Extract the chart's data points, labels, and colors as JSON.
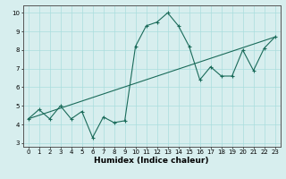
{
  "title": "",
  "xlabel": "Humidex (Indice chaleur)",
  "ylabel": "",
  "bg_color": "#d7eeee",
  "line_color": "#1a6b5a",
  "xlim": [
    -0.5,
    23.5
  ],
  "ylim": [
    2.8,
    10.4
  ],
  "xticks": [
    0,
    1,
    2,
    3,
    4,
    5,
    6,
    7,
    8,
    9,
    10,
    11,
    12,
    13,
    14,
    15,
    16,
    17,
    18,
    19,
    20,
    21,
    22,
    23
  ],
  "yticks": [
    3,
    4,
    5,
    6,
    7,
    8,
    9,
    10
  ],
  "wavy_x": [
    0,
    1,
    2,
    3,
    4,
    5,
    6,
    7,
    8,
    9,
    10,
    11,
    12,
    13,
    14,
    15,
    16,
    17,
    18,
    19,
    20,
    21,
    22,
    23
  ],
  "wavy_y": [
    4.3,
    4.8,
    4.3,
    5.0,
    4.3,
    4.7,
    3.3,
    4.4,
    4.1,
    4.2,
    8.2,
    9.3,
    9.5,
    10.0,
    9.3,
    8.2,
    6.4,
    7.1,
    6.6,
    6.6,
    8.0,
    6.9,
    8.1,
    8.7
  ],
  "line_x": [
    0,
    23
  ],
  "line_y": [
    4.3,
    8.7
  ],
  "grid_color": "#aadddd",
  "tick_fontsize": 5,
  "xlabel_fontsize": 6.5
}
